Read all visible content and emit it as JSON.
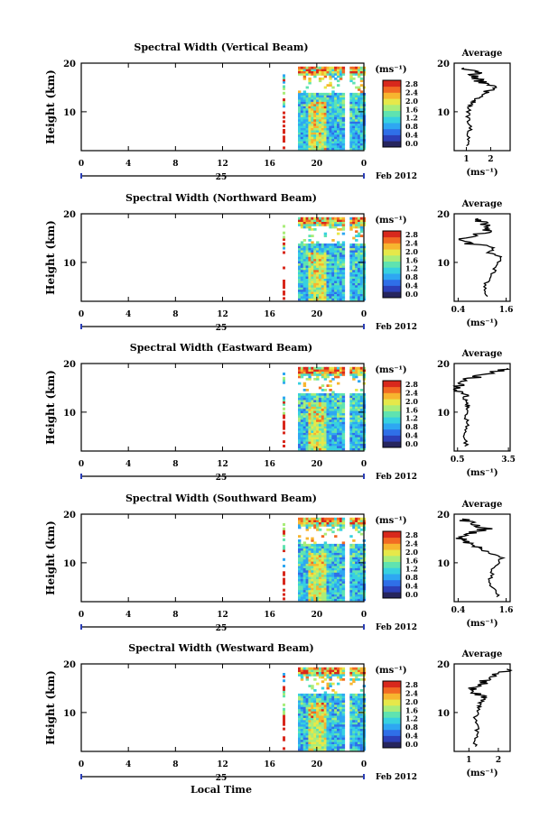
{
  "colors": {
    "colormap": [
      "#26255e",
      "#2c3fb8",
      "#2f6fe8",
      "#2ea7f2",
      "#37d1e0",
      "#5fe3b0",
      "#a9ed7a",
      "#e6e84a",
      "#f7b52f",
      "#f26a23",
      "#d8281c"
    ]
  },
  "shared": {
    "xticks": [
      "0",
      "4",
      "8",
      "12",
      "16",
      "20",
      "0"
    ],
    "day_label": "25",
    "month_label": "Feb 2012",
    "xlabel": "Local Time",
    "ylabel": "Height (km)",
    "yticks": [
      "10",
      "20"
    ],
    "avg_title": "Average",
    "colorbar_unit": "(ms⁻¹)",
    "colorbar_ticks": [
      "0.0",
      "0.4",
      "0.8",
      "1.2",
      "1.6",
      "2.0",
      "2.4",
      "2.8"
    ],
    "avg_xunit": "(ms⁻¹)"
  },
  "chart_data": [
    {
      "type": "heatmap",
      "title": "Spectral Width (Vertical Beam)",
      "xlabel": "",
      "ylabel": "Height (km)",
      "xlim": [
        0,
        24
      ],
      "ylim": [
        2,
        20
      ],
      "avg": {
        "type": "line",
        "title": "Average",
        "xticks": [
          "1",
          "2"
        ],
        "xlim": [
          0.5,
          2.8
        ],
        "heights": [
          3,
          5,
          7,
          9,
          11,
          12,
          13,
          14,
          15,
          16,
          17,
          18,
          19
        ],
        "values": [
          1.0,
          1.1,
          1.2,
          1.05,
          1.15,
          1.3,
          1.5,
          1.9,
          2.4,
          1.7,
          1.3,
          1.4,
          0.9
        ]
      }
    },
    {
      "type": "heatmap",
      "title": "Spectral Width (Northward Beam)",
      "xlabel": "",
      "ylabel": "Height (km)",
      "xlim": [
        0,
        24
      ],
      "ylim": [
        2,
        20
      ],
      "avg": {
        "type": "line",
        "title": "Average",
        "xticks": [
          "0.4",
          "1.6"
        ],
        "xlim": [
          0.3,
          1.7
        ],
        "heights": [
          3,
          5,
          7,
          9,
          11,
          12,
          13,
          14,
          15,
          16,
          17,
          18,
          19
        ],
        "values": [
          1.1,
          1.05,
          1.2,
          1.35,
          1.5,
          1.15,
          1.3,
          0.6,
          0.5,
          1.0,
          1.2,
          1.0,
          0.9
        ]
      }
    },
    {
      "type": "heatmap",
      "title": "Spectral Width (Eastward Beam)",
      "xlabel": "",
      "ylabel": "Height (km)",
      "xlim": [
        0,
        24
      ],
      "ylim": [
        2,
        20
      ],
      "avg": {
        "type": "line",
        "title": "Average",
        "xticks": [
          "0.5",
          "3.5"
        ],
        "xlim": [
          0.3,
          3.6
        ],
        "heights": [
          3,
          5,
          7,
          9,
          11,
          12,
          13,
          14,
          15,
          16,
          17,
          18,
          19
        ],
        "values": [
          1.0,
          0.95,
          1.1,
          1.0,
          1.15,
          1.0,
          0.9,
          0.7,
          0.6,
          0.8,
          1.3,
          2.5,
          3.4
        ]
      }
    },
    {
      "type": "heatmap",
      "title": "Spectral Width (Southward Beam)",
      "xlabel": "",
      "ylabel": "Height (km)",
      "xlim": [
        0,
        24
      ],
      "ylim": [
        2,
        20
      ],
      "avg": {
        "type": "line",
        "title": "Average",
        "xticks": [
          "0.4",
          "1.6"
        ],
        "xlim": [
          0.3,
          1.7
        ],
        "heights": [
          3,
          5,
          7,
          9,
          11,
          12,
          13,
          14,
          15,
          16,
          17,
          18,
          19
        ],
        "values": [
          1.4,
          1.25,
          1.2,
          1.3,
          1.5,
          1.2,
          0.9,
          0.6,
          0.5,
          0.7,
          1.1,
          0.8,
          0.5
        ]
      }
    },
    {
      "type": "heatmap",
      "title": "Spectral Width (Westward Beam)",
      "xlabel": "Local Time",
      "ylabel": "Height (km)",
      "xlim": [
        0,
        24
      ],
      "ylim": [
        2,
        20
      ],
      "avg": {
        "type": "line",
        "title": "Average",
        "xticks": [
          "1",
          "2"
        ],
        "xlim": [
          0.5,
          2.4
        ],
        "heights": [
          3,
          5,
          7,
          9,
          11,
          12,
          13,
          14,
          15,
          16,
          17,
          18,
          19
        ],
        "values": [
          1.2,
          1.25,
          1.3,
          1.2,
          1.35,
          1.4,
          1.5,
          1.3,
          1.2,
          1.45,
          1.6,
          2.0,
          2.3
        ]
      }
    }
  ]
}
